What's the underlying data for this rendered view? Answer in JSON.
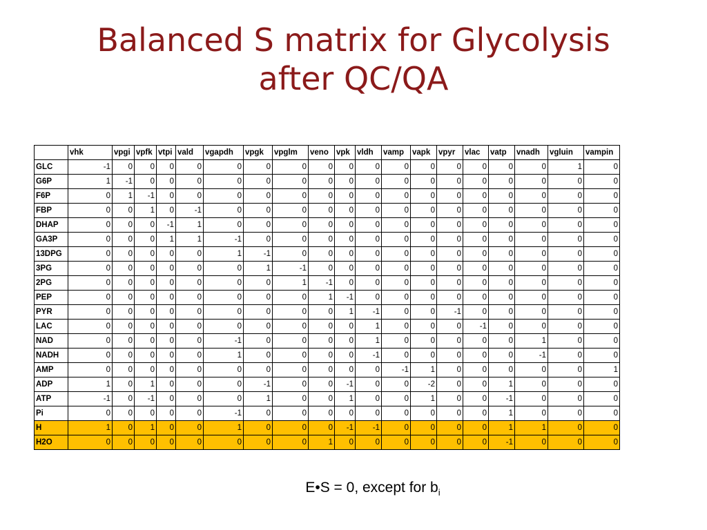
{
  "title": {
    "line1": "Balanced S matrix for Glycolysis",
    "line2": "after QC/QA"
  },
  "table": {
    "columns": [
      "vhk",
      "vpgi",
      "vpfk",
      "vtpi",
      "vald",
      "vgapdh",
      "vpgk",
      "vpglm",
      "veno",
      "vpk",
      "vldh",
      "vamp",
      "vapk",
      "vpyr",
      "vlac",
      "vatp",
      "vnadh",
      "vgluin",
      "vampin"
    ],
    "rows": [
      {
        "label": "GLC",
        "values": [
          -1,
          0,
          0,
          0,
          0,
          0,
          0,
          0,
          0,
          0,
          0,
          0,
          0,
          0,
          0,
          0,
          0,
          1,
          0
        ],
        "highlight": false
      },
      {
        "label": "G6P",
        "values": [
          1,
          -1,
          0,
          0,
          0,
          0,
          0,
          0,
          0,
          0,
          0,
          0,
          0,
          0,
          0,
          0,
          0,
          0,
          0
        ],
        "highlight": false
      },
      {
        "label": "F6P",
        "values": [
          0,
          1,
          -1,
          0,
          0,
          0,
          0,
          0,
          0,
          0,
          0,
          0,
          0,
          0,
          0,
          0,
          0,
          0,
          0
        ],
        "highlight": false
      },
      {
        "label": "FBP",
        "values": [
          0,
          0,
          1,
          0,
          -1,
          0,
          0,
          0,
          0,
          0,
          0,
          0,
          0,
          0,
          0,
          0,
          0,
          0,
          0
        ],
        "highlight": false
      },
      {
        "label": "DHAP",
        "values": [
          0,
          0,
          0,
          -1,
          1,
          0,
          0,
          0,
          0,
          0,
          0,
          0,
          0,
          0,
          0,
          0,
          0,
          0,
          0
        ],
        "highlight": false
      },
      {
        "label": "GA3P",
        "values": [
          0,
          0,
          0,
          1,
          1,
          -1,
          0,
          0,
          0,
          0,
          0,
          0,
          0,
          0,
          0,
          0,
          0,
          0,
          0
        ],
        "highlight": false
      },
      {
        "label": "13DPG",
        "values": [
          0,
          0,
          0,
          0,
          0,
          1,
          -1,
          0,
          0,
          0,
          0,
          0,
          0,
          0,
          0,
          0,
          0,
          0,
          0
        ],
        "highlight": false
      },
      {
        "label": "3PG",
        "values": [
          0,
          0,
          0,
          0,
          0,
          0,
          1,
          -1,
          0,
          0,
          0,
          0,
          0,
          0,
          0,
          0,
          0,
          0,
          0
        ],
        "highlight": false
      },
      {
        "label": "2PG",
        "values": [
          0,
          0,
          0,
          0,
          0,
          0,
          0,
          1,
          -1,
          0,
          0,
          0,
          0,
          0,
          0,
          0,
          0,
          0,
          0
        ],
        "highlight": false
      },
      {
        "label": "PEP",
        "values": [
          0,
          0,
          0,
          0,
          0,
          0,
          0,
          0,
          1,
          -1,
          0,
          0,
          0,
          0,
          0,
          0,
          0,
          0,
          0
        ],
        "highlight": false
      },
      {
        "label": "PYR",
        "values": [
          0,
          0,
          0,
          0,
          0,
          0,
          0,
          0,
          0,
          1,
          -1,
          0,
          0,
          -1,
          0,
          0,
          0,
          0,
          0
        ],
        "highlight": false
      },
      {
        "label": "LAC",
        "values": [
          0,
          0,
          0,
          0,
          0,
          0,
          0,
          0,
          0,
          0,
          1,
          0,
          0,
          0,
          -1,
          0,
          0,
          0,
          0
        ],
        "highlight": false
      },
      {
        "label": "NAD",
        "values": [
          0,
          0,
          0,
          0,
          0,
          -1,
          0,
          0,
          0,
          0,
          1,
          0,
          0,
          0,
          0,
          0,
          1,
          0,
          0
        ],
        "highlight": false
      },
      {
        "label": "NADH",
        "values": [
          0,
          0,
          0,
          0,
          0,
          1,
          0,
          0,
          0,
          0,
          -1,
          0,
          0,
          0,
          0,
          0,
          -1,
          0,
          0
        ],
        "highlight": false
      },
      {
        "label": "AMP",
        "values": [
          0,
          0,
          0,
          0,
          0,
          0,
          0,
          0,
          0,
          0,
          0,
          -1,
          1,
          0,
          0,
          0,
          0,
          0,
          1
        ],
        "highlight": false
      },
      {
        "label": "ADP",
        "values": [
          1,
          0,
          1,
          0,
          0,
          0,
          -1,
          0,
          0,
          -1,
          0,
          0,
          -2,
          0,
          0,
          1,
          0,
          0,
          0
        ],
        "highlight": false
      },
      {
        "label": "ATP",
        "values": [
          -1,
          0,
          -1,
          0,
          0,
          0,
          1,
          0,
          0,
          1,
          0,
          0,
          1,
          0,
          0,
          -1,
          0,
          0,
          0
        ],
        "highlight": false
      },
      {
        "label": "Pi",
        "values": [
          0,
          0,
          0,
          0,
          0,
          -1,
          0,
          0,
          0,
          0,
          0,
          0,
          0,
          0,
          0,
          1,
          0,
          0,
          0
        ],
        "highlight": false
      },
      {
        "label": "H",
        "values": [
          1,
          0,
          1,
          0,
          0,
          1,
          0,
          0,
          0,
          -1,
          -1,
          0,
          0,
          0,
          0,
          1,
          1,
          0,
          0
        ],
        "highlight": true
      },
      {
        "label": "H2O",
        "values": [
          0,
          0,
          0,
          0,
          0,
          0,
          0,
          0,
          1,
          0,
          0,
          0,
          0,
          0,
          0,
          -1,
          0,
          0,
          0
        ],
        "highlight": true
      }
    ]
  },
  "footnote": {
    "text": "E•S = 0, except for b",
    "subscript": "i"
  },
  "colors": {
    "title": "#8b1a1a",
    "highlight": "#ffc000"
  }
}
